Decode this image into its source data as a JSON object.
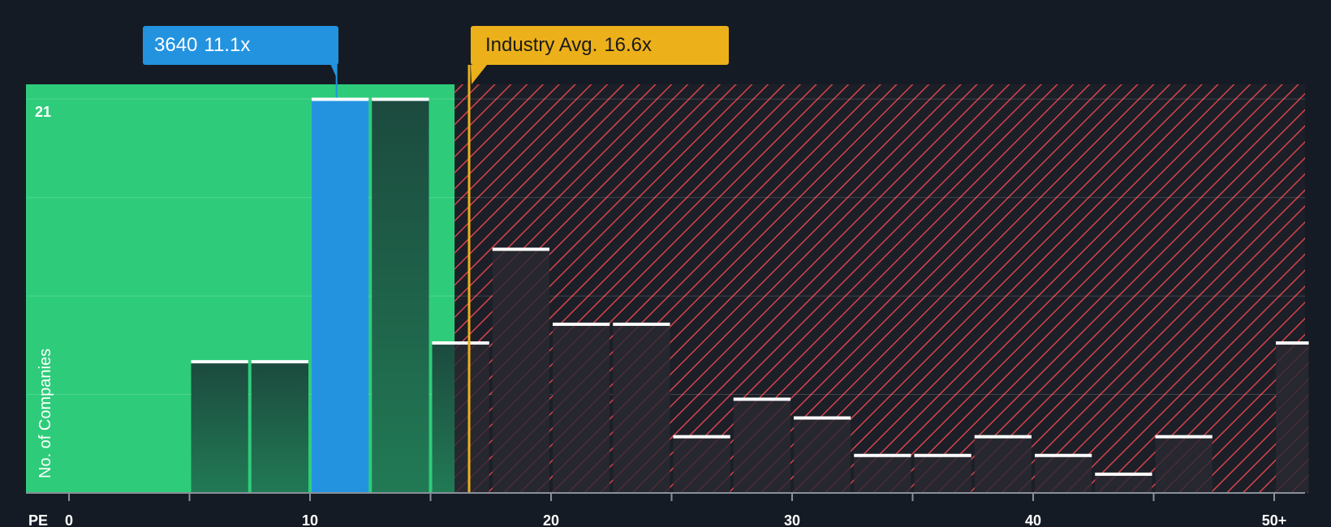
{
  "chart_data": {
    "type": "bar",
    "x_axis_label": "PE",
    "y_axis_label": "No. of Companies",
    "x_ticks": [
      "0",
      "10",
      "20",
      "30",
      "40",
      "50+"
    ],
    "y_tick_label": "21",
    "ylim": [
      0,
      21.8
    ],
    "xlim": [
      0,
      51.5
    ],
    "grid": true,
    "bins": [
      {
        "x0": 5,
        "x1": 7.5,
        "value": 7
      },
      {
        "x0": 7.5,
        "x1": 10,
        "value": 7
      },
      {
        "x0": 10,
        "x1": 12.5,
        "value": 21,
        "highlight": true
      },
      {
        "x0": 12.5,
        "x1": 15,
        "value": 21
      },
      {
        "x0": 15,
        "x1": 17.5,
        "value": 8
      },
      {
        "x0": 17.5,
        "x1": 20,
        "value": 13
      },
      {
        "x0": 20,
        "x1": 22.5,
        "value": 9
      },
      {
        "x0": 22.5,
        "x1": 25,
        "value": 9
      },
      {
        "x0": 25,
        "x1": 27.5,
        "value": 3
      },
      {
        "x0": 27.5,
        "x1": 30,
        "value": 5
      },
      {
        "x0": 30,
        "x1": 32.5,
        "value": 4
      },
      {
        "x0": 32.5,
        "x1": 35,
        "value": 2
      },
      {
        "x0": 35,
        "x1": 37.5,
        "value": 2
      },
      {
        "x0": 37.5,
        "x1": 40,
        "value": 3
      },
      {
        "x0": 40,
        "x1": 42.5,
        "value": 2
      },
      {
        "x0": 42.5,
        "x1": 45,
        "value": 1
      },
      {
        "x0": 45,
        "x1": 47.5,
        "value": 3
      },
      {
        "x0": 50,
        "x1": 51.5,
        "value": 8
      }
    ],
    "company": {
      "ticker": "3640",
      "pe": 11.1,
      "pe_label": "11.1x"
    },
    "industry": {
      "label": "Industry Avg.",
      "pe": 16.6,
      "pe_label": "16.6x"
    },
    "fair_zone_end": 16,
    "colors": {
      "background": "#151b24",
      "fair_zone": "#2ecc7a",
      "overvalued_zone": "#e0474c",
      "company_bar": "#2393e0",
      "industry_line": "#ecb01a",
      "bar": "#1f4d3c",
      "bar_top": "#ffffff"
    }
  }
}
